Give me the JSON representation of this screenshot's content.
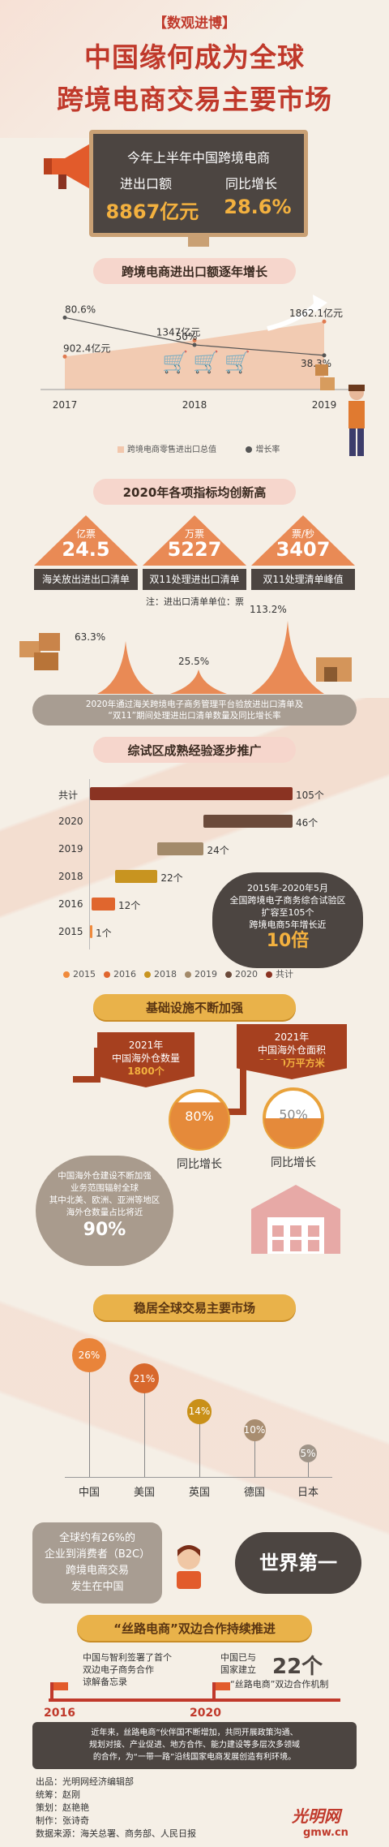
{
  "header": {
    "tag": "【数观进博】",
    "title_line1": "中国缘何成为全球",
    "title_line2": "跨境电商交易主要市场"
  },
  "board": {
    "line1": "今年上半年中国跨境电商",
    "label_left": "进出口额",
    "label_right": "同比增长",
    "value_left": "8867亿元",
    "value_right": "28.6%"
  },
  "section1": {
    "title": "跨境电商进出口额逐年增长",
    "legend_amount": "跨境电商零售进出口总值",
    "legend_growth": "增长率"
  },
  "section2": {
    "title": "2020年各项指标均创新高",
    "note": "注：进出口清单单位：票",
    "tiles": [
      {
        "unit": "亿票",
        "value": "24.5",
        "label": "海关放出进出口清单"
      },
      {
        "unit": "万票",
        "value": "5227",
        "label": "双11处理进出口清单"
      },
      {
        "unit": "票/秒",
        "value": "3407",
        "label": "双11处理清单峰值"
      }
    ],
    "growth": [
      "63.3%",
      "25.5%",
      "113.2%"
    ],
    "caption_line1": "2020年通过海关跨境电子商务管理平台验放进出口清单及",
    "caption_line2": "“双11”期间处理进出口清单数量及同比增长率"
  },
  "section3": {
    "title": "综试区成熟经验逐步推广",
    "bubble_line1": "2015年-2020年5月",
    "bubble_line2": "全国跨境电子商务综合试验区",
    "bubble_line3": "扩容至105个",
    "bubble_line4": "跨境电商5年增长近",
    "bubble_value": "10倍"
  },
  "section4": {
    "title": "基础设施不断加强",
    "ribbon_left_line1": "2021年",
    "ribbon_left_line2": "中国海外仓数量",
    "ribbon_left_value": "1800个",
    "ribbon_right_line1": "2021年",
    "ribbon_right_line2": "中国海外仓面积",
    "ribbon_right_value": "1200万平方米",
    "pct_left": "80%",
    "pct_right": "50%",
    "growth_label_left": "同比增长",
    "growth_label_right": "同比增长",
    "bubble_line1": "中国海外仓建设不断加强",
    "bubble_line2": "业务范围辐射全球",
    "bubble_line3": "其中北美、欧洲、亚洲等地区",
    "bubble_line4": "海外仓数量占比将近",
    "bubble_value": "90%"
  },
  "section5": {
    "title": "稳居全球交易主要市场",
    "bubble_line1": "全球约有26%的",
    "bubble_line2": "企业到消费者（B2C）",
    "bubble_line3": "跨境电商交易",
    "bubble_line4": "发生在中国",
    "first": "世界第一"
  },
  "section6": {
    "title": "“丝路电商”双边合作持续推进",
    "left_text1": "中国与智利签署了首个",
    "left_text2": "双边电子商务合作",
    "left_text3": "谅解备忘录",
    "left_year": "2016",
    "right_text1": "中国已与",
    "right_text2": "国家建立",
    "right_count": "22个",
    "right_text3": "“丝路电商”双边合作机制",
    "right_year": "2020",
    "summary_line1": "近年来，丝路电商”伙伴国不断增加，共同开展政策沟通、",
    "summary_line2": "规划对接、产业促进、地方合作、能力建设等多层次多领域",
    "summary_line3": "的合作，为“一带一路”沿线国家电商发展创造有利环境。"
  },
  "credits": {
    "line1": "出品：光明网经济编辑部",
    "line2": "统筹：赵刚",
    "line3": "策划：赵艳艳",
    "line4": "制作：张诗奇",
    "line5": "数据来源：海关总署、商务部、人民日报",
    "logo_text": "光明网",
    "logo_sub": "gmw.cn"
  },
  "chart_data": [
    {
      "type": "line",
      "title": "跨境电商进出口额逐年增长",
      "categories": [
        "2017",
        "2018",
        "2019"
      ],
      "series": [
        {
          "name": "跨境电商零售进出口总值",
          "values": [
            902.4,
            1347,
            1862.1
          ],
          "labels": [
            "902.4亿元",
            "1347亿元",
            "1862.1亿元"
          ]
        },
        {
          "name": "增长率",
          "values": [
            80.6,
            50,
            38.3
          ],
          "labels": [
            "80.6%",
            "50%",
            "38.3%"
          ]
        }
      ]
    },
    {
      "type": "bar",
      "title": "综试区成熟经验逐步推广",
      "categories": [
        "共计",
        "2020",
        "2019",
        "2018",
        "2016",
        "2015"
      ],
      "values": [
        105,
        46,
        24,
        22,
        12,
        1
      ],
      "labels": [
        "105个",
        "46个",
        "24个",
        "22个",
        "12个",
        "1个"
      ],
      "legend": [
        "2015",
        "2016",
        "2018",
        "2019",
        "2020",
        "共计"
      ],
      "colors": [
        "#f08a3c",
        "#e0662e",
        "#c89420",
        "#a38a6a",
        "#6b4a3a",
        "#8a3322"
      ]
    },
    {
      "type": "bar",
      "title": "稳居全球交易主要市场",
      "categories": [
        "中国",
        "美国",
        "英国",
        "德国",
        "日本"
      ],
      "values": [
        26,
        21,
        14,
        10,
        5
      ],
      "labels": [
        "26%",
        "21%",
        "14%",
        "10%",
        "5%"
      ],
      "colors": [
        "#e9843a",
        "#d8682c",
        "#c99018",
        "#a88d70",
        "#9f9488"
      ]
    }
  ]
}
